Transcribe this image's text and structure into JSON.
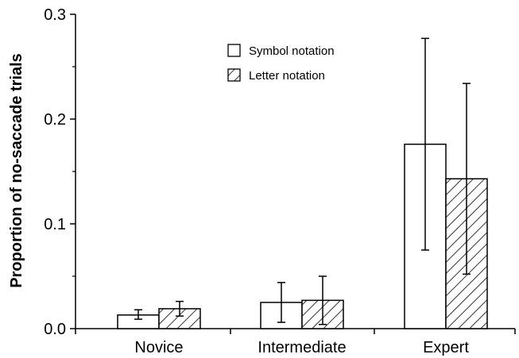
{
  "chart_data": {
    "type": "bar",
    "title": "",
    "xlabel": "",
    "ylabel": "Proportion of no-saccade trials",
    "categories": [
      "Novice",
      "Intermediate",
      "Expert"
    ],
    "ylim": [
      0,
      0.3
    ],
    "yticks": [
      "0.0",
      "0.1",
      "0.2",
      "0.3"
    ],
    "grid": false,
    "legend": "top-center",
    "series": [
      {
        "name": "Symbol notation",
        "fill": "plain",
        "values": [
          0.013,
          0.025,
          0.176
        ],
        "err_low": [
          0.009,
          0.006,
          0.075
        ],
        "err_high": [
          0.018,
          0.044,
          0.277
        ]
      },
      {
        "name": "Letter notation",
        "fill": "hatched",
        "values": [
          0.019,
          0.027,
          0.143
        ],
        "err_low": [
          0.012,
          0.004,
          0.052
        ],
        "err_high": [
          0.026,
          0.05,
          0.234
        ]
      }
    ]
  }
}
